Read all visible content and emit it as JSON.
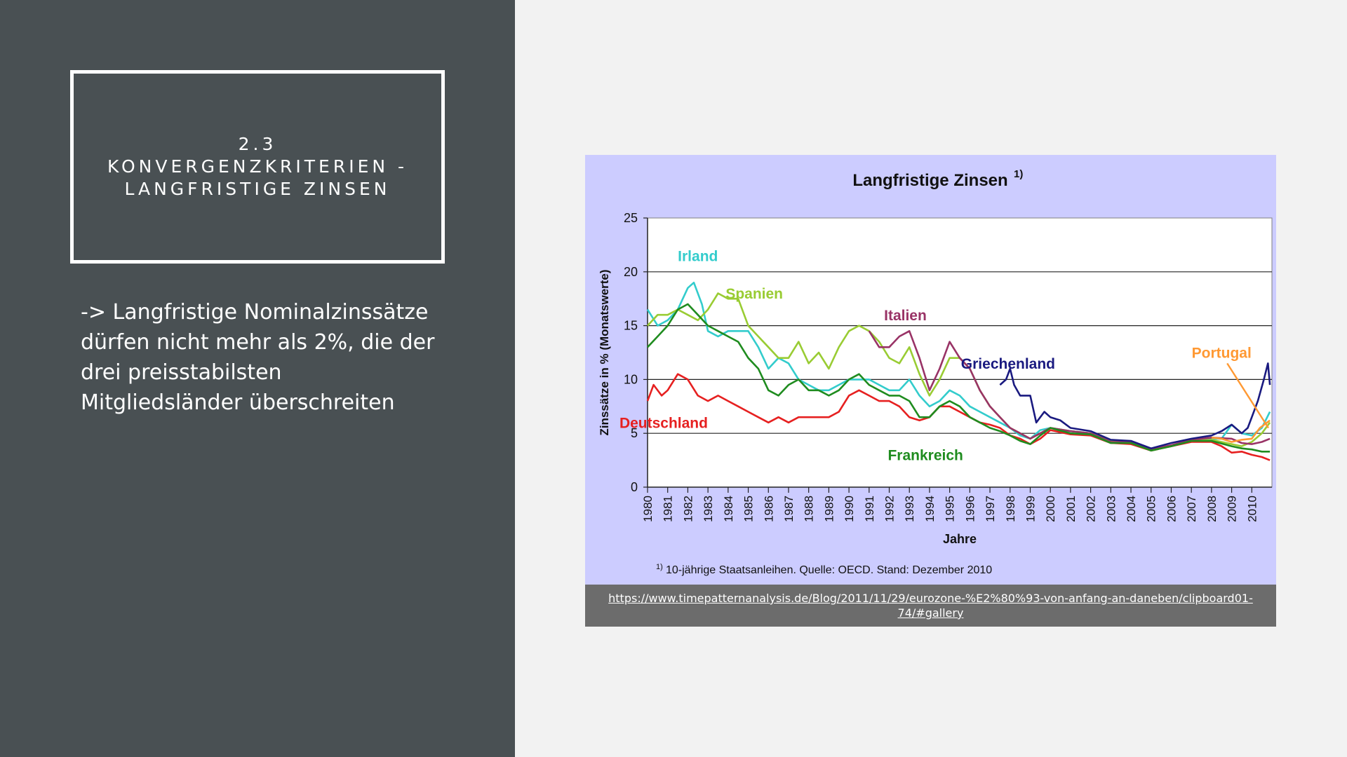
{
  "slide": {
    "title_lines": [
      "2.3",
      "KONVERGENZKRITERIEN -",
      "LANGFRISTIGE ZINSEN"
    ],
    "body_lines": [
      "-> Langfristige Nominalzinssätze",
      "dürfen nicht mehr als 2%, die der",
      "drei preisstabilsten",
      "Mitgliedsländer überschreiten"
    ],
    "source_url": "https://www.timepatternanalysis.de/Blog/2011/11/29/eurozone-%E2%80%93-von-anfang-an-daneben/clipboard01-74/#gallery"
  },
  "colors": {
    "left_panel": "#495053",
    "right_panel": "#f2f2f2",
    "chart_background": "#ccccff",
    "plot_background": "#ffffff",
    "source_bar": "#6c6c6c"
  },
  "chart_data": {
    "type": "line",
    "title": "Langfristige Zinsen",
    "title_sup": "1)",
    "ylabel": "Zinssätze in % (Monatswerte)",
    "xlabel": "Jahre",
    "ylim": [
      0,
      25
    ],
    "yticks": [
      0,
      5,
      10,
      15,
      20,
      25
    ],
    "xlim": [
      1980,
      2011
    ],
    "xticks": [
      "1980",
      "1981",
      "1982",
      "1983",
      "1984",
      "1985",
      "1986",
      "1987",
      "1988",
      "1989",
      "1990",
      "1991",
      "1992",
      "1993",
      "1994",
      "1995",
      "1996",
      "1997",
      "1998",
      "1999",
      "2000",
      "2001",
      "2002",
      "2003",
      "2004",
      "2005",
      "2006",
      "2007",
      "2008",
      "2009",
      "2010"
    ],
    "grid": "horizontal",
    "footnote_sup": "1)",
    "footnote": "10-jährige Staatsanleihen. Quelle: OECD. Stand: Dezember 2010",
    "series": [
      {
        "name": "Irland",
        "color": "#33cccc",
        "label_at": [
          1982.5,
          21
        ],
        "x": [
          1980,
          1980.5,
          1981,
          1981.5,
          1982,
          1982.3,
          1982.7,
          1983,
          1983.5,
          1984,
          1984.5,
          1985,
          1985.5,
          1986,
          1986.5,
          1987,
          1987.5,
          1988,
          1988.5,
          1989,
          1989.5,
          1990,
          1990.5,
          1991,
          1991.5,
          1992,
          1992.5,
          1993,
          1993.5,
          1994,
          1994.5,
          1995,
          1995.5,
          1996,
          1996.5,
          1997,
          1997.5,
          1998,
          1998.5,
          1999,
          1999.5,
          2000,
          2001,
          2002,
          2003,
          2004,
          2005,
          2006,
          2007,
          2008,
          2008.5,
          2009,
          2009.5,
          2010,
          2010.5,
          2010.9
        ],
        "y": [
          16.5,
          15,
          15.5,
          16.5,
          18.5,
          19,
          17,
          14.5,
          14,
          14.5,
          14.5,
          14.5,
          13,
          11,
          12,
          11.5,
          10,
          9.5,
          9,
          9,
          9.5,
          10,
          10,
          10,
          9.5,
          9,
          9,
          10,
          8.5,
          7.5,
          8,
          9,
          8.5,
          7.5,
          7,
          6.5,
          6,
          5.5,
          4.8,
          4.5,
          5.3,
          5.5,
          5.2,
          5,
          4.3,
          4.2,
          3.5,
          3.8,
          4.3,
          4.5,
          4.5,
          5.8,
          5,
          4.8,
          5.5,
          7
        ]
      },
      {
        "name": "Spanien",
        "color": "#99cc33",
        "label_at": [
          1985.3,
          17.5
        ],
        "x": [
          1980,
          1980.5,
          1981,
          1981.5,
          1982,
          1982.5,
          1983,
          1983.5,
          1984,
          1984.5,
          1985,
          1985.5,
          1986,
          1986.5,
          1987,
          1987.5,
          1988,
          1988.5,
          1989,
          1989.5,
          1990,
          1990.5,
          1991,
          1991.5,
          1992,
          1992.5,
          1993,
          1993.5,
          1994,
          1994.5,
          1995,
          1995.5,
          1996,
          1996.5,
          1997,
          1997.5,
          1998,
          1998.5,
          1999,
          1999.5,
          2000,
          2001,
          2002,
          2003,
          2004,
          2005,
          2006,
          2007,
          2008,
          2009,
          2009.5,
          2010,
          2010.5,
          2010.9
        ],
        "y": [
          15,
          16,
          16,
          16.5,
          16,
          15.5,
          16.5,
          18,
          17.5,
          17.5,
          15,
          14,
          13,
          12,
          12,
          13.5,
          11.5,
          12.5,
          11,
          13,
          14.5,
          15,
          14.5,
          13.5,
          12,
          11.5,
          13,
          10.5,
          8.5,
          10,
          12,
          12,
          11,
          9,
          7.5,
          6.5,
          5.5,
          5,
          4.5,
          5,
          5.5,
          5.2,
          5,
          4.3,
          4.1,
          3.4,
          3.8,
          4.3,
          4.4,
          4,
          3.8,
          4.2,
          5,
          6
        ]
      },
      {
        "name": "Italien",
        "color": "#993366",
        "label_at": [
          1992.8,
          15.5
        ],
        "x": [
          1991,
          1991.5,
          1992,
          1992.5,
          1993,
          1993.5,
          1994,
          1994.5,
          1995,
          1995.5,
          1996,
          1996.5,
          1997,
          1997.5,
          1998,
          1998.5,
          1999,
          1999.5,
          2000,
          2001,
          2002,
          2003,
          2004,
          2005,
          2006,
          2007,
          2008,
          2009,
          2009.5,
          2010,
          2010.5,
          2010.9
        ],
        "y": [
          14.5,
          13,
          13,
          14,
          14.5,
          12,
          9,
          11,
          13.5,
          12,
          11,
          9,
          7.5,
          6.5,
          5.5,
          5,
          4.5,
          5,
          5.5,
          5.2,
          5,
          4.2,
          4.2,
          3.5,
          3.9,
          4.4,
          4.6,
          4.5,
          4.1,
          4,
          4.2,
          4.5
        ]
      },
      {
        "name": "Griechenland",
        "color": "#1a1a80",
        "label_at": [
          1997.9,
          11
        ],
        "x": [
          1997.5,
          1997.8,
          1998,
          1998.2,
          1998.5,
          1999,
          1999.3,
          1999.7,
          2000,
          2000.5,
          2001,
          2002,
          2003,
          2004,
          2005,
          2006,
          2007,
          2008,
          2008.5,
          2009,
          2009.5,
          2009.8,
          2010,
          2010.3,
          2010.6,
          2010.8,
          2010.9
        ],
        "y": [
          9.5,
          10,
          11,
          9.5,
          8.5,
          8.5,
          6,
          7,
          6.5,
          6.2,
          5.5,
          5.2,
          4.4,
          4.3,
          3.6,
          4.1,
          4.5,
          4.8,
          5.2,
          5.8,
          5,
          5.5,
          6.5,
          8,
          10,
          11.5,
          9.5
        ]
      },
      {
        "name": "Portugal",
        "color": "#ff9933",
        "label_at": [
          2008.5,
          12
        ],
        "x": [
          2008,
          2008.5,
          2009,
          2009.5,
          2010,
          2010.4,
          2010.9
        ],
        "y": [
          4.6,
          4.5,
          4.2,
          4.4,
          4.5,
          5.5,
          6.2
        ]
      },
      {
        "name": "Deutschland",
        "color": "#e62020",
        "label_at": [
          1980.8,
          5.5
        ],
        "x": [
          1980,
          1980.3,
          1980.7,
          1981,
          1981.5,
          1982,
          1982.5,
          1983,
          1983.5,
          1984,
          1984.5,
          1985,
          1985.5,
          1986,
          1986.5,
          1987,
          1987.5,
          1988,
          1988.5,
          1989,
          1989.5,
          1990,
          1990.5,
          1991,
          1991.5,
          1992,
          1992.5,
          1993,
          1993.5,
          1994,
          1994.5,
          1995,
          1995.5,
          1996,
          1996.5,
          1997,
          1997.5,
          1998,
          1998.5,
          1999,
          1999.5,
          2000,
          2001,
          2002,
          2003,
          2004,
          2005,
          2006,
          2007,
          2008,
          2008.5,
          2009,
          2009.5,
          2010,
          2010.5,
          2010.9
        ],
        "y": [
          8,
          9.5,
          8.5,
          9,
          10.5,
          10,
          8.5,
          8,
          8.5,
          8,
          7.5,
          7,
          6.5,
          6,
          6.5,
          6,
          6.5,
          6.5,
          6.5,
          6.5,
          7,
          8.5,
          9,
          8.5,
          8,
          8,
          7.5,
          6.5,
          6.2,
          6.5,
          7.5,
          7.5,
          7,
          6.5,
          6,
          5.8,
          5.5,
          4.8,
          4.5,
          4,
          4.5,
          5.3,
          4.9,
          4.8,
          4.1,
          4,
          3.4,
          3.8,
          4.2,
          4.2,
          3.8,
          3.2,
          3.3,
          3,
          2.8,
          2.5
        ]
      },
      {
        "name": "Frankreich",
        "color": "#1f8c1f",
        "label_at": [
          1993.8,
          2.5
        ],
        "x": [
          1980,
          1980.5,
          1981,
          1981.5,
          1982,
          1982.5,
          1983,
          1983.5,
          1984,
          1984.5,
          1985,
          1985.5,
          1986,
          1986.5,
          1987,
          1987.5,
          1988,
          1988.5,
          1989,
          1989.5,
          1990,
          1990.5,
          1991,
          1991.5,
          1992,
          1992.5,
          1993,
          1993.5,
          1994,
          1994.5,
          1995,
          1995.5,
          1996,
          1996.5,
          1997,
          1997.5,
          1998,
          1998.5,
          1999,
          1999.5,
          2000,
          2001,
          2002,
          2003,
          2004,
          2005,
          2006,
          2007,
          2008,
          2009,
          2009.5,
          2010,
          2010.5,
          2010.9
        ],
        "y": [
          13,
          14,
          15,
          16.5,
          17,
          16,
          15,
          14.5,
          14,
          13.5,
          12,
          11,
          9,
          8.5,
          9.5,
          10,
          9,
          9,
          8.5,
          9,
          10,
          10.5,
          9.5,
          9,
          8.5,
          8.5,
          8,
          6.5,
          6.5,
          7.5,
          8,
          7.5,
          6.5,
          6,
          5.5,
          5.2,
          4.8,
          4.3,
          4,
          4.8,
          5.5,
          5,
          4.9,
          4.1,
          4.1,
          3.4,
          3.8,
          4.3,
          4.3,
          3.8,
          3.6,
          3.5,
          3.3,
          3.3
        ]
      }
    ]
  }
}
